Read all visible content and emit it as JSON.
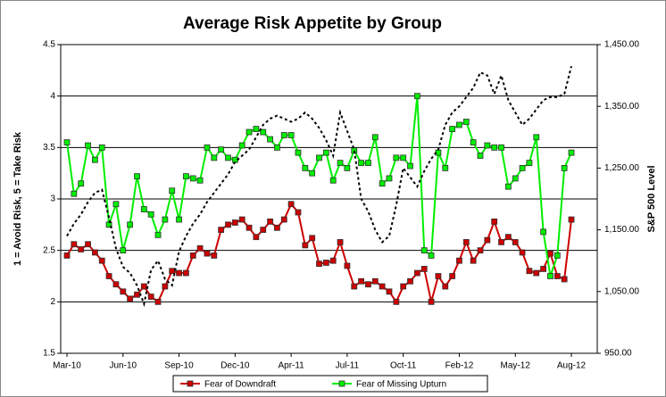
{
  "chart_data": {
    "type": "line",
    "title": "Average Risk Appetite by Group",
    "y_label": "1 = Avoid Risk, 5 = Take Risk",
    "y2_label": "S&P 500 Level",
    "categories": [
      "Mar-10",
      null,
      null,
      null,
      null,
      null,
      null,
      null,
      "Jun-10",
      null,
      null,
      null,
      null,
      null,
      null,
      null,
      "Sep-10",
      null,
      null,
      null,
      null,
      null,
      null,
      null,
      "Dec-10",
      null,
      null,
      null,
      null,
      null,
      null,
      null,
      "Apr-11",
      null,
      null,
      null,
      null,
      null,
      null,
      null,
      "Jul-11",
      null,
      null,
      null,
      null,
      null,
      null,
      null,
      "Oct-11",
      null,
      null,
      null,
      null,
      null,
      null,
      null,
      "Feb-12",
      null,
      null,
      null,
      null,
      null,
      null,
      null,
      "May-12",
      null,
      null,
      null,
      null,
      null,
      null,
      null,
      "Aug-12"
    ],
    "series": [
      {
        "name": "Fear of Downdraft",
        "color": "#cc0000",
        "values": [
          2.45,
          2.56,
          2.51,
          2.56,
          2.48,
          2.4,
          2.25,
          2.17,
          2.1,
          2.03,
          2.07,
          2.15,
          2.05,
          2.0,
          2.15,
          2.3,
          2.28,
          2.28,
          2.45,
          2.52,
          2.47,
          2.45,
          2.7,
          2.75,
          2.77,
          2.8,
          2.72,
          2.63,
          2.7,
          2.78,
          2.72,
          2.8,
          2.95,
          2.87,
          2.55,
          2.62,
          2.37,
          2.38,
          2.4,
          2.58,
          2.35,
          2.15,
          2.2,
          2.17,
          2.2,
          2.15,
          2.1,
          2.0,
          2.15,
          2.2,
          2.28,
          2.32,
          2.0,
          2.25,
          2.15,
          2.25,
          2.4,
          2.58,
          2.4,
          2.5,
          2.6,
          2.78,
          2.58,
          2.63,
          2.58,
          2.48,
          2.3,
          2.28,
          2.32,
          2.47,
          2.25,
          2.22,
          2.8
        ]
      },
      {
        "name": "Fear of Missing Upturn",
        "color": "#00ee00",
        "values": [
          3.55,
          3.05,
          3.15,
          3.52,
          3.38,
          3.5,
          2.75,
          2.95,
          2.5,
          2.75,
          3.22,
          2.9,
          2.85,
          2.65,
          2.8,
          3.08,
          2.8,
          3.22,
          3.2,
          3.18,
          3.5,
          3.4,
          3.48,
          3.4,
          3.38,
          3.52,
          3.65,
          3.68,
          3.65,
          3.58,
          3.5,
          3.62,
          3.62,
          3.45,
          3.3,
          3.25,
          3.4,
          3.45,
          3.18,
          3.35,
          3.3,
          3.47,
          3.35,
          3.35,
          3.6,
          3.15,
          3.2,
          3.4,
          3.4,
          3.32,
          4.0,
          2.5,
          2.45,
          3.45,
          3.3,
          3.68,
          3.72,
          3.75,
          3.55,
          3.42,
          3.52,
          3.5,
          3.5,
          3.12,
          3.2,
          3.3,
          3.35,
          3.6,
          2.68,
          2.25,
          2.45,
          3.3,
          3.45
        ]
      },
      {
        "axis": "y2",
        "color": "#000000",
        "values": [
          1140,
          1160,
          1175,
          1195,
          1210,
          1215,
          1170,
          1120,
          1090,
          1080,
          1060,
          1030,
          1085,
          1100,
          1070,
          1060,
          1115,
          1140,
          1160,
          1175,
          1195,
          1210,
          1225,
          1240,
          1260,
          1270,
          1280,
          1300,
          1320,
          1330,
          1335,
          1330,
          1325,
          1330,
          1340,
          1330,
          1315,
          1295,
          1270,
          1340,
          1310,
          1280,
          1200,
          1180,
          1150,
          1130,
          1140,
          1190,
          1250,
          1235,
          1220,
          1245,
          1265,
          1280,
          1320,
          1340,
          1350,
          1365,
          1380,
          1405,
          1400,
          1370,
          1400,
          1360,
          1340,
          1320,
          1330,
          1345,
          1360,
          1365,
          1365,
          1370,
          1415
        ]
      }
    ],
    "ylim": [
      1.5,
      4.5
    ],
    "yticks": [
      1.5,
      2,
      2.5,
      3,
      3.5,
      4,
      4.5
    ],
    "y2lim": [
      950,
      1450
    ],
    "y2ticks": [
      {
        "value": 950,
        "label": "950.00"
      },
      {
        "value": 1050,
        "label": "1,050.00"
      },
      {
        "value": 1150,
        "label": "1,150.00"
      },
      {
        "value": 1250,
        "label": "1,250.00"
      },
      {
        "value": 1350,
        "label": "1,350.00"
      },
      {
        "value": 1450,
        "label": "1,450.00"
      }
    ],
    "grid": true,
    "legend": "bottom"
  }
}
